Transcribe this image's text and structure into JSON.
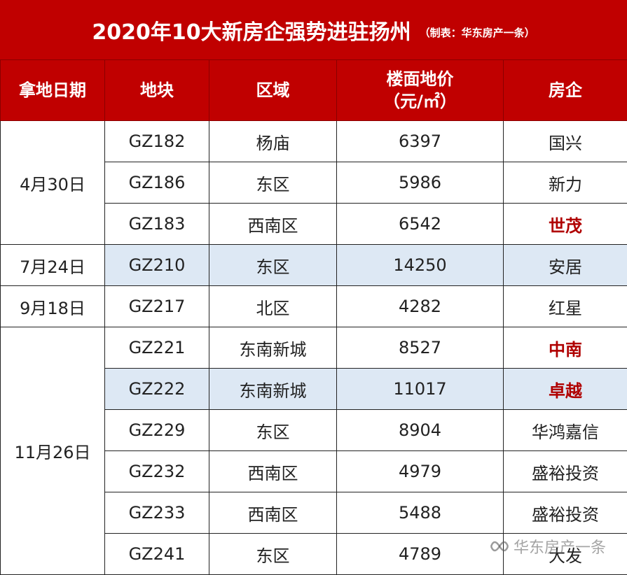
{
  "title": "2020年10大新房企强势进驻扬州",
  "title_note": "（制表：华东房产一条）",
  "colors": {
    "header_red": "#c00000",
    "highlight_blue": "#dde8f4",
    "brand_red": "#b00000"
  },
  "headers": [
    "拿地日期",
    "地块",
    "区域",
    "楼面地价",
    "房企"
  ],
  "header_price_unit": "（元/㎡）",
  "groups": [
    {
      "date": "4月30日",
      "rows": [
        {
          "plot": "GZ182",
          "area": "杨庙",
          "price": "6397",
          "company": "国兴",
          "company_red": false,
          "highlight": false
        },
        {
          "plot": "GZ186",
          "area": "东区",
          "price": "5986",
          "company": "新力",
          "company_red": false,
          "highlight": false
        },
        {
          "plot": "GZ183",
          "area": "西南区",
          "price": "6542",
          "company": "世茂",
          "company_red": true,
          "highlight": false
        }
      ]
    },
    {
      "date": "7月24日",
      "rows": [
        {
          "plot": "GZ210",
          "area": "东区",
          "price": "14250",
          "company": "安居",
          "company_red": false,
          "highlight": true
        }
      ]
    },
    {
      "date": "9月18日",
      "rows": [
        {
          "plot": "GZ217",
          "area": "北区",
          "price": "4282",
          "company": "红星",
          "company_red": false,
          "highlight": false
        }
      ]
    },
    {
      "date": "11月26日",
      "rows": [
        {
          "plot": "GZ221",
          "area": "东南新城",
          "price": "8527",
          "company": "中南",
          "company_red": true,
          "highlight": false
        },
        {
          "plot": "GZ222",
          "area": "东南新城",
          "price": "11017",
          "company": "卓越",
          "company_red": true,
          "highlight": true
        },
        {
          "plot": "GZ229",
          "area": "东区",
          "price": "8904",
          "company": "华鸿嘉信",
          "company_red": false,
          "highlight": false
        },
        {
          "plot": "GZ232",
          "area": "西南区",
          "price": "4979",
          "company": "盛裕投资",
          "company_red": false,
          "highlight": false
        },
        {
          "plot": "GZ233",
          "area": "西南区",
          "price": "5488",
          "company": "盛裕投资",
          "company_red": false,
          "highlight": false
        },
        {
          "plot": "GZ241",
          "area": "东区",
          "price": "4789",
          "company": "大发",
          "company_red": false,
          "highlight": false
        }
      ]
    }
  ],
  "watermark": {
    "icon": "wechat-channel-icon",
    "text": "华东房产一条"
  }
}
